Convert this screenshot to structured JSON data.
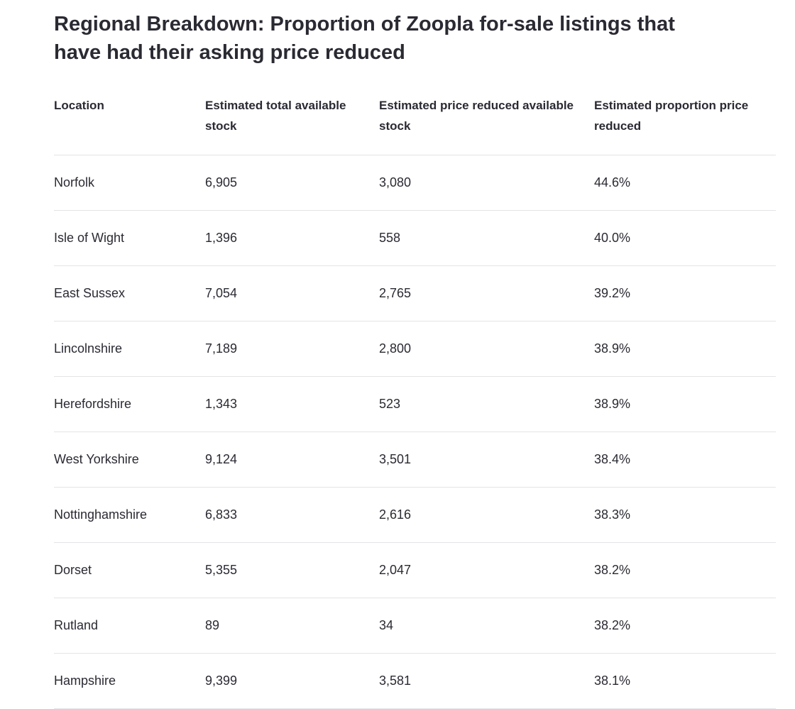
{
  "title": "Regional Breakdown: Proportion of Zoopla for-sale listings that have had their asking price reduced",
  "table": {
    "headers": [
      "Location",
      "Estimated total available stock",
      "Estimated price reduced available stock",
      "Estimated proportion price reduced"
    ],
    "rows": [
      [
        "Norfolk",
        "6,905",
        "3,080",
        "44.6%"
      ],
      [
        "Isle of Wight",
        "1,396",
        "558",
        "40.0%"
      ],
      [
        "East Sussex",
        "7,054",
        "2,765",
        "39.2%"
      ],
      [
        "Lincolnshire",
        "7,189",
        "2,800",
        "38.9%"
      ],
      [
        "Herefordshire",
        "1,343",
        "523",
        "38.9%"
      ],
      [
        "West Yorkshire",
        "9,124",
        "3,501",
        "38.4%"
      ],
      [
        "Nottinghamshire",
        "6,833",
        "2,616",
        "38.3%"
      ],
      [
        "Dorset",
        "5,355",
        "2,047",
        "38.2%"
      ],
      [
        "Rutland",
        "89",
        "34",
        "38.2%"
      ],
      [
        "Hampshire",
        "9,399",
        "3,581",
        "38.1%"
      ]
    ]
  }
}
